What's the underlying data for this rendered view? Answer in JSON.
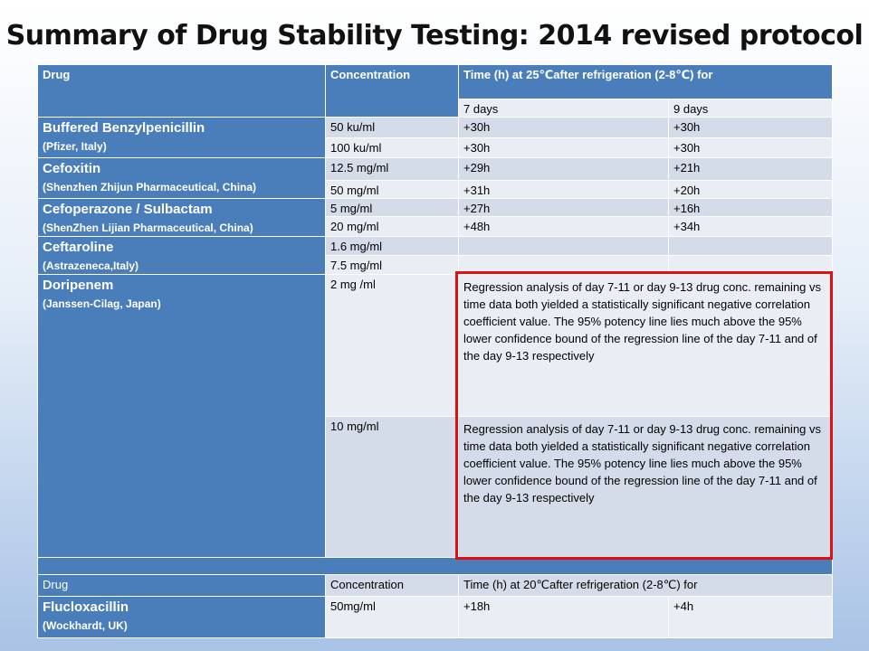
{
  "title": "Summary of Drug Stability Testing: 2014 revised protocol",
  "table1": {
    "headers": {
      "drug": "Drug",
      "concentration": "Concentration",
      "time": "Time (h) at 25℃after refrigeration (2-8℃) for",
      "day7": "7 days",
      "day9": "9 days"
    },
    "drugs": [
      {
        "name": "Buffered Benzylpenicillin",
        "manufacturer": "(Pfizer, Italy)",
        "rows": [
          {
            "conc": "50 ku/ml",
            "d7": "+30h",
            "d9": "+30h"
          },
          {
            "conc": "100 ku/ml",
            "d7": "+30h",
            "d9": "+30h"
          }
        ]
      },
      {
        "name": "Cefoxitin",
        "manufacturer": "(Shenzhen Zhijun Pharmaceutical, China)",
        "rows": [
          {
            "conc": "12.5 mg/ml",
            "d7": "+29h",
            "d9": "+21h"
          },
          {
            "conc": "50 mg/ml",
            "d7": "+31h",
            "d9": "+20h"
          }
        ]
      },
      {
        "name": "Cefoperazone / Sulbactam",
        "manufacturer": "(ShenZhen Lijian Pharmaceutical, China)",
        "rows": [
          {
            "conc": "5 mg/ml",
            "d7": "+27h",
            "d9": "+16h"
          },
          {
            "conc": "20 mg/ml",
            "d7": "+48h",
            "d9": "+34h"
          }
        ]
      },
      {
        "name": "Ceftaroline",
        "manufacturer": "(Astrazeneca,Italy)",
        "rows": [
          {
            "conc": "1.6 mg/ml",
            "d7": "",
            "d9": ""
          },
          {
            "conc": "7.5 mg/ml",
            "d7": "",
            "d9": ""
          }
        ]
      },
      {
        "name": "Doripenem",
        "manufacturer": "(Janssen-Cilag, Japan)",
        "rows": [
          {
            "conc": "2 mg /ml",
            "note": "Regression analysis of day 7-11 or day 9-13 drug conc. remaining vs time data both yielded a statistically significant negative correlation coefficient value. The 95% potency line lies much above the 95% lower confidence bound of the regression line of the day 7-11 and of the day 9-13 respectively"
          },
          {
            "conc": "10 mg/ml",
            "note": "Regression analysis of day 7-11 or day 9-13 drug conc. remaining vs time data both yielded a statistically significant negative correlation coefficient value. The 95% potency line lies much above the 95% lower confidence bound of the regression line of the day 7-11 and of the day 9-13 respectively"
          }
        ]
      }
    ]
  },
  "table2": {
    "headers": {
      "drug": "Drug",
      "concentration": "Concentration",
      "time": "Time (h) at 20℃after refrigeration (2-8℃) for"
    },
    "drug": {
      "name": "Flucloxacillin",
      "manufacturer": "(Wockhardt, UK)",
      "conc": "50mg/ml",
      "d7": "+18h",
      "d9": "+4h"
    }
  },
  "colors": {
    "header_blue": "#4a7ebb",
    "cell_dark": "#d4dcea",
    "cell_light": "#e9eef5",
    "highlight_red": "#e01010"
  }
}
